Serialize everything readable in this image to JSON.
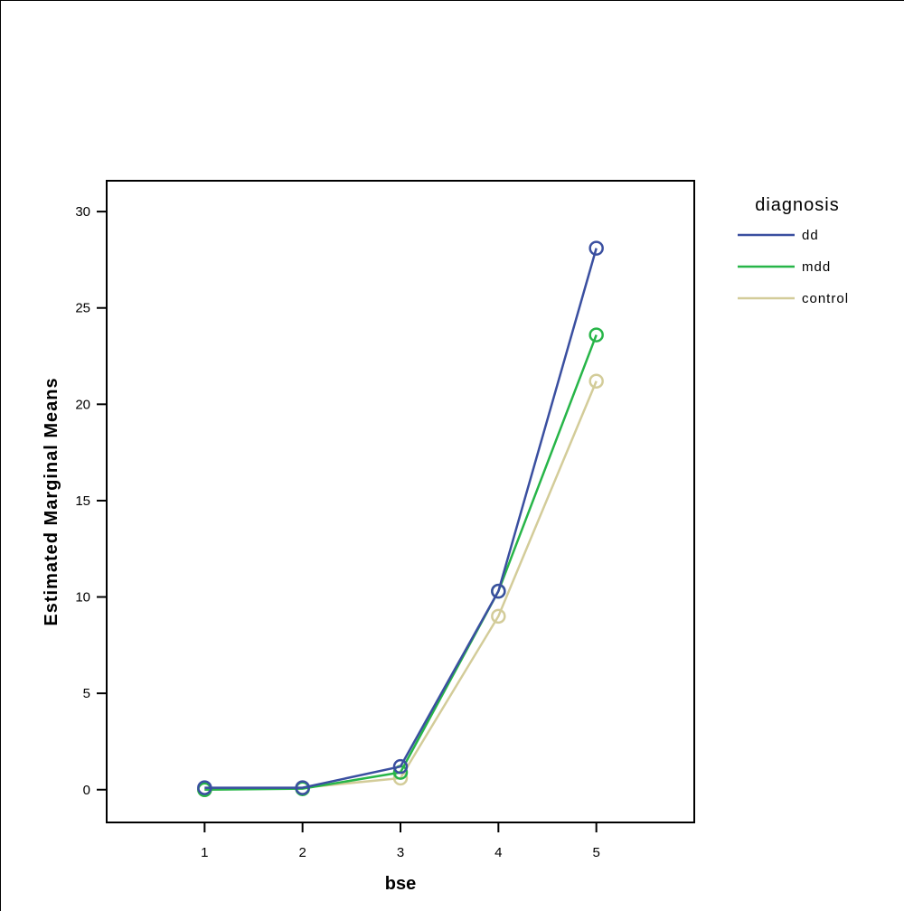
{
  "chart_data": {
    "type": "line",
    "title": "",
    "xlabel": "bse",
    "ylabel": "Estimated Marginal Means",
    "x": [
      1,
      2,
      3,
      4,
      5
    ],
    "x_ticks": [
      "1",
      "2",
      "3",
      "4",
      "5"
    ],
    "xlim": [
      0,
      6
    ],
    "ylim": [
      -1.7,
      31.6
    ],
    "y_ticks": [
      0,
      5,
      10,
      15,
      20,
      25,
      30
    ],
    "grid": false,
    "legend": {
      "title": "diagnosis",
      "placement": "right"
    },
    "series": [
      {
        "name": "dd",
        "color": "#3a4fa0",
        "values": [
          0.1,
          0.1,
          1.2,
          10.3,
          28.1
        ]
      },
      {
        "name": "mdd",
        "color": "#27b548",
        "values": [
          0.0,
          0.05,
          0.9,
          10.3,
          23.6
        ]
      },
      {
        "name": "control",
        "color": "#d3cc99",
        "values": [
          0.0,
          0.1,
          0.6,
          9.0,
          21.2
        ]
      }
    ],
    "marker": "circle-open"
  }
}
